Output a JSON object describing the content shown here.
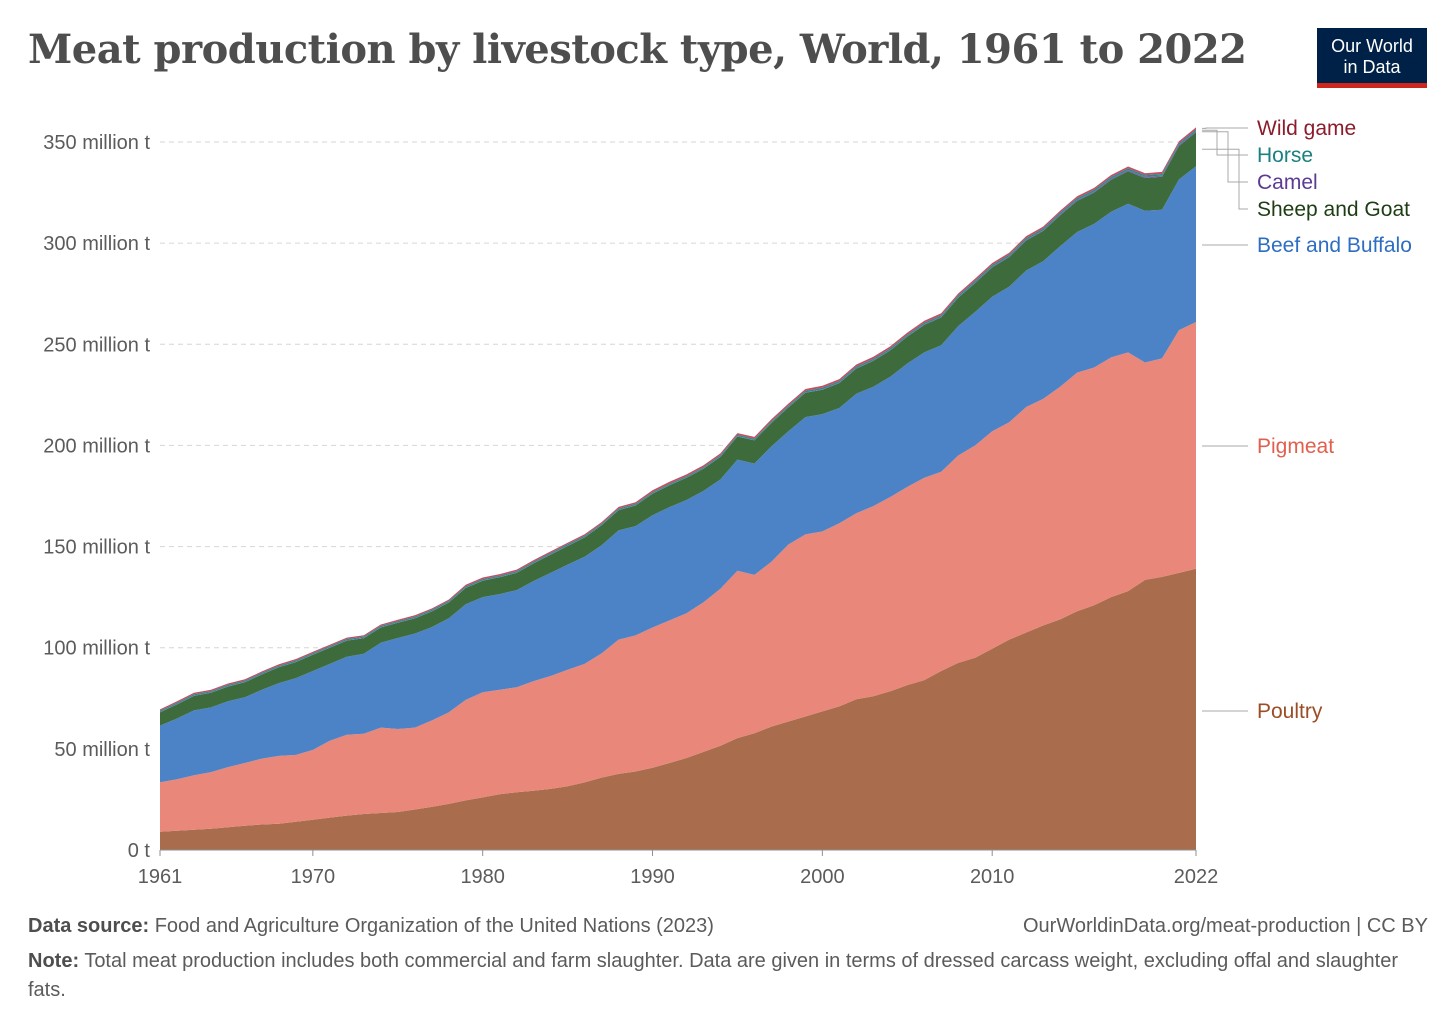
{
  "title": "Meat production by livestock type, World, 1961 to 2022",
  "logo": {
    "line1": "Our World",
    "line2": "in Data"
  },
  "footer": {
    "source_label": "Data source:",
    "source_text": "Food and Agriculture Organization of the United Nations (2023)",
    "url": "OurWorldinData.org/meat-production | CC BY",
    "note_label": "Note:",
    "note_text": "Total meat production includes both commercial and farm slaughter. Data are given in terms of dressed carcass weight, excluding offal and slaughter fats."
  },
  "chart_data": {
    "type": "area",
    "stacked": true,
    "x_start": 1961,
    "x_end": 2022,
    "xlim": [
      1961,
      2022
    ],
    "ylim": [
      0,
      350
    ],
    "x_ticks": [
      1961,
      1970,
      1980,
      1990,
      2000,
      2010,
      2022
    ],
    "y_ticks": [
      0,
      50,
      100,
      150,
      200,
      250,
      300,
      350
    ],
    "y_tick_labels": [
      "0 t",
      "50 million t",
      "100 million t",
      "150 million t",
      "200 million t",
      "250 million t",
      "300 million t",
      "350 million t"
    ],
    "grid": "horizontal dashed",
    "legend_position": "right, inline labels",
    "series": [
      {
        "name": "Poultry",
        "color": "#a96d4e",
        "values": [
          9,
          9.5,
          10,
          10.5,
          11.2,
          12,
          12.6,
          13,
          14,
          15,
          16,
          17,
          17.8,
          18.3,
          18.8,
          20,
          21.3,
          22.8,
          24.5,
          26,
          27.6,
          28.5,
          29.3,
          30.2,
          31.5,
          33.4,
          35.8,
          37.6,
          38.8,
          40.7,
          43,
          45.5,
          48.5,
          51.5,
          55.3,
          57.7,
          61,
          63.5,
          66,
          68.5,
          71,
          74.5,
          76,
          78.5,
          81.5,
          84,
          88.5,
          92.5,
          95,
          99.5,
          104,
          107.5,
          111,
          114,
          118,
          121,
          125,
          128,
          133.5,
          135,
          137,
          139
        ]
      },
      {
        "name": "Pigmeat",
        "color": "#e8877a",
        "values": [
          24.5,
          25.5,
          27,
          28,
          29.8,
          31,
          32.6,
          33.5,
          33,
          34.5,
          38,
          40,
          39.7,
          42.2,
          41,
          40.5,
          42.7,
          45.2,
          49.7,
          52,
          51.6,
          52,
          54.2,
          55.8,
          57.6,
          58.6,
          61.4,
          66.4,
          67.3,
          69.3,
          70.5,
          71.5,
          74,
          77.7,
          82.7,
          78.3,
          81.5,
          87.5,
          90,
          89,
          90.5,
          92,
          94,
          96,
          98,
          100,
          98.5,
          102.5,
          105,
          107.5,
          107.5,
          111.5,
          112,
          115,
          118,
          117.5,
          118.5,
          118,
          107.5,
          108,
          120,
          122
        ]
      },
      {
        "name": "Beef and Buffalo",
        "color": "#4c82c6",
        "values": [
          28,
          30,
          32,
          32,
          32.5,
          32.5,
          34,
          36,
          38,
          39,
          38,
          38.5,
          39.5,
          42,
          45,
          46.5,
          46.2,
          46.5,
          47.3,
          47,
          47.3,
          48,
          49.5,
          51,
          52,
          53,
          53.5,
          54,
          54,
          55.5,
          56,
          56,
          55,
          54,
          55,
          55,
          57,
          56,
          58,
          58,
          57,
          59,
          59,
          59.5,
          61,
          62,
          62.5,
          64,
          66,
          66.5,
          67,
          67.5,
          68,
          69.5,
          69.5,
          71,
          72,
          73.5,
          75,
          73.5,
          74.5,
          77
        ]
      },
      {
        "name": "Sheep and Goat",
        "color": "#3e6b3b",
        "values": [
          6.5,
          7,
          7.2,
          7.2,
          7.3,
          7.4,
          7.6,
          7.8,
          7.9,
          8,
          8,
          8,
          7.7,
          7.5,
          7.5,
          7.5,
          7.7,
          7.8,
          8,
          8.1,
          8.3,
          8.5,
          8.7,
          9,
          9.2,
          9.5,
          9.8,
          10,
          10.2,
          10.6,
          10.8,
          11,
          11,
          11.2,
          11.4,
          11.5,
          11.6,
          11.8,
          12,
          12,
          12.3,
          12.5,
          12.8,
          13,
          13.3,
          13.6,
          13.8,
          14,
          14.3,
          14.5,
          14.6,
          14.8,
          15,
          15.2,
          15.4,
          15.5,
          15.8,
          16,
          16.2,
          16.3,
          16.5,
          16.8
        ]
      },
      {
        "name": "Camel",
        "color": "#7b5ea8",
        "values": [
          0.2,
          0.2,
          0.2,
          0.2,
          0.2,
          0.2,
          0.2,
          0.2,
          0.2,
          0.2,
          0.2,
          0.2,
          0.2,
          0.2,
          0.2,
          0.2,
          0.2,
          0.2,
          0.2,
          0.2,
          0.2,
          0.2,
          0.2,
          0.2,
          0.2,
          0.2,
          0.2,
          0.2,
          0.2,
          0.2,
          0.2,
          0.2,
          0.2,
          0.2,
          0.2,
          0.2,
          0.2,
          0.2,
          0.2,
          0.3,
          0.3,
          0.3,
          0.3,
          0.3,
          0.3,
          0.3,
          0.3,
          0.3,
          0.4,
          0.4,
          0.4,
          0.4,
          0.4,
          0.5,
          0.5,
          0.5,
          0.6,
          0.6,
          0.6,
          0.6,
          0.6,
          0.6
        ]
      },
      {
        "name": "Horse",
        "color": "#1c8d8c",
        "values": [
          0.6,
          0.6,
          0.6,
          0.6,
          0.6,
          0.6,
          0.6,
          0.6,
          0.6,
          0.6,
          0.6,
          0.6,
          0.6,
          0.6,
          0.6,
          0.6,
          0.6,
          0.6,
          0.6,
          0.6,
          0.6,
          0.6,
          0.6,
          0.6,
          0.6,
          0.6,
          0.6,
          0.6,
          0.6,
          0.6,
          0.6,
          0.6,
          0.6,
          0.6,
          0.6,
          0.6,
          0.6,
          0.7,
          0.7,
          0.7,
          0.7,
          0.7,
          0.7,
          0.7,
          0.7,
          0.7,
          0.7,
          0.8,
          0.8,
          0.8,
          0.8,
          0.8,
          0.8,
          0.8,
          0.8,
          0.8,
          0.8,
          0.8,
          0.8,
          0.8,
          0.8,
          0.8
        ]
      },
      {
        "name": "Wild game",
        "color": "#c15065",
        "values": [
          0.7,
          0.7,
          0.7,
          0.7,
          0.7,
          0.7,
          0.7,
          0.7,
          0.7,
          0.7,
          0.7,
          0.7,
          0.7,
          0.7,
          0.7,
          0.7,
          0.7,
          0.7,
          0.8,
          0.8,
          0.8,
          0.8,
          0.8,
          0.8,
          0.8,
          0.8,
          0.8,
          0.8,
          0.8,
          0.9,
          0.9,
          0.9,
          0.9,
          0.9,
          0.9,
          0.9,
          1,
          1,
          1,
          1,
          1,
          1,
          1,
          1,
          1,
          1,
          1,
          1,
          1,
          1,
          1,
          1,
          1,
          1,
          1,
          1,
          1,
          1,
          1,
          1,
          1,
          1
        ]
      }
    ],
    "legend_label_colors": {
      "Wild game": "#8c1c2c",
      "Horse": "#1a8080",
      "Camel": "#5b3b93",
      "Sheep and Goat": "#1d3d14",
      "Beef and Buffalo": "#2d6ec2",
      "Pigmeat": "#e0604f",
      "Poultry": "#9b4d26"
    }
  }
}
